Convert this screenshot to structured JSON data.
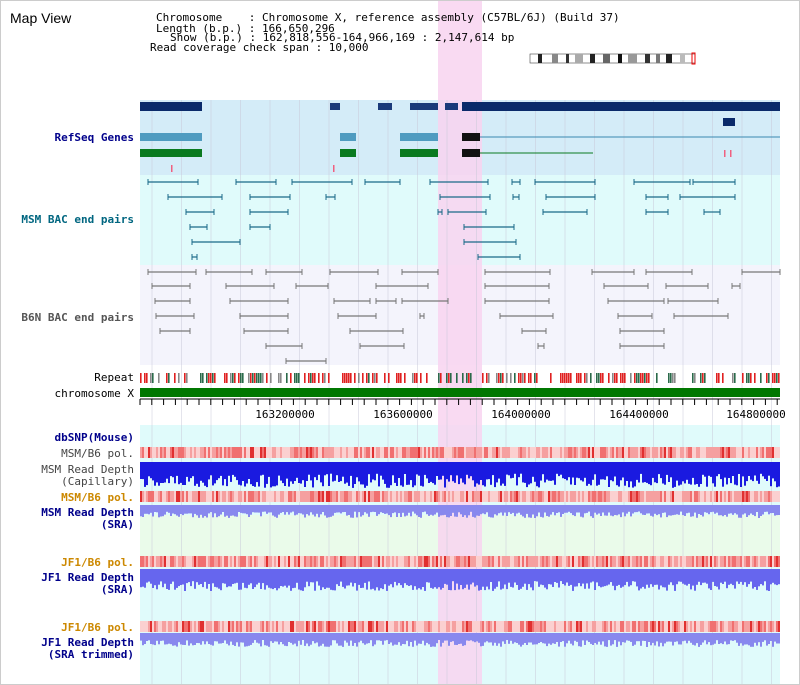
{
  "title": "Map View",
  "info": {
    "chromosome": "Chromosome    : Chromosome X, reference assembly (C57BL/6J) (Build 37)",
    "length": "Length (b.p.) : 166,650,296",
    "show": "Show (b.p.) : 162,818,556-164,966,169 : 2,147,614 bp",
    "coverage": "Read coverage check span : 10,000"
  },
  "tracks": {
    "refseq": "RefSeq Genes",
    "msm_bac": "MSM BAC end pairs",
    "b6n_bac": "B6N BAC end pairs",
    "repeat": "Repeat",
    "chromosome": "chromosome X",
    "dbsnp": "dbSNP(Mouse)",
    "msm_b6_pol_1": "MSM/B6 pol.",
    "msm_read_depth_cap_1": "MSM Read Depth",
    "msm_read_depth_cap_2": "(Capillary)",
    "msm_b6_pol_2": "MSM/B6 pol.",
    "msm_read_depth_sra_1": "MSM Read Depth",
    "msm_read_depth_sra_2": "(SRA)",
    "jf1_b6_pol_1": "JF1/B6 pol.",
    "jf1_read_depth_1": "JF1 Read Depth",
    "jf1_read_depth_2": "(SRA)",
    "jf1_b6_pol_2": "JF1/B6 pol.",
    "jf1_read_depth_trim_1": "JF1 Read Depth",
    "jf1_read_depth_trim_2": "(SRA trimmed)"
  },
  "axis_ticks": [
    "163200000",
    "163600000",
    "164000000",
    "164400000",
    "164800000"
  ],
  "colors": {
    "navy_label": "#00008b",
    "teal_label": "#006680",
    "gray_label": "#555555",
    "orange_label": "#cc8800",
    "refseq_bg": "#d4ecf8",
    "bac_bg": "#e0fbfb",
    "highlight": "#f8d4f0",
    "chromosome_bar": "#007700"
  }
}
